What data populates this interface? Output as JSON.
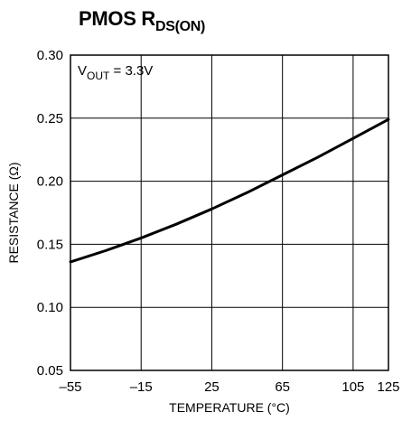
{
  "chart_data": {
    "type": "line",
    "title": {
      "main": "PMOS R",
      "sub": "DS(ON)"
    },
    "annotation": {
      "main": "V",
      "sub": "OUT",
      "rest": " = 3.3V"
    },
    "xlabel": "TEMPERATURE (°C)",
    "ylabel": "RESISTANCE (Ω)",
    "xlim": [
      -55,
      125
    ],
    "ylim": [
      0.05,
      0.3
    ],
    "x_ticks": [
      -55,
      -15,
      25,
      65,
      105,
      125
    ],
    "x_tick_labels": [
      "–55",
      "–15",
      "25",
      "65",
      "105",
      "125"
    ],
    "y_ticks": [
      0.05,
      0.1,
      0.15,
      0.2,
      0.25,
      0.3
    ],
    "y_tick_labels": [
      "0.05",
      "0.10",
      "0.15",
      "0.20",
      "0.25",
      "0.30"
    ],
    "grid": true,
    "series": [
      {
        "x": [
          -55,
          -35,
          -15,
          5,
          25,
          45,
          65,
          85,
          105,
          125
        ],
        "y": [
          0.136,
          0.145,
          0.155,
          0.166,
          0.178,
          0.191,
          0.205,
          0.219,
          0.234,
          0.249
        ]
      }
    ]
  }
}
